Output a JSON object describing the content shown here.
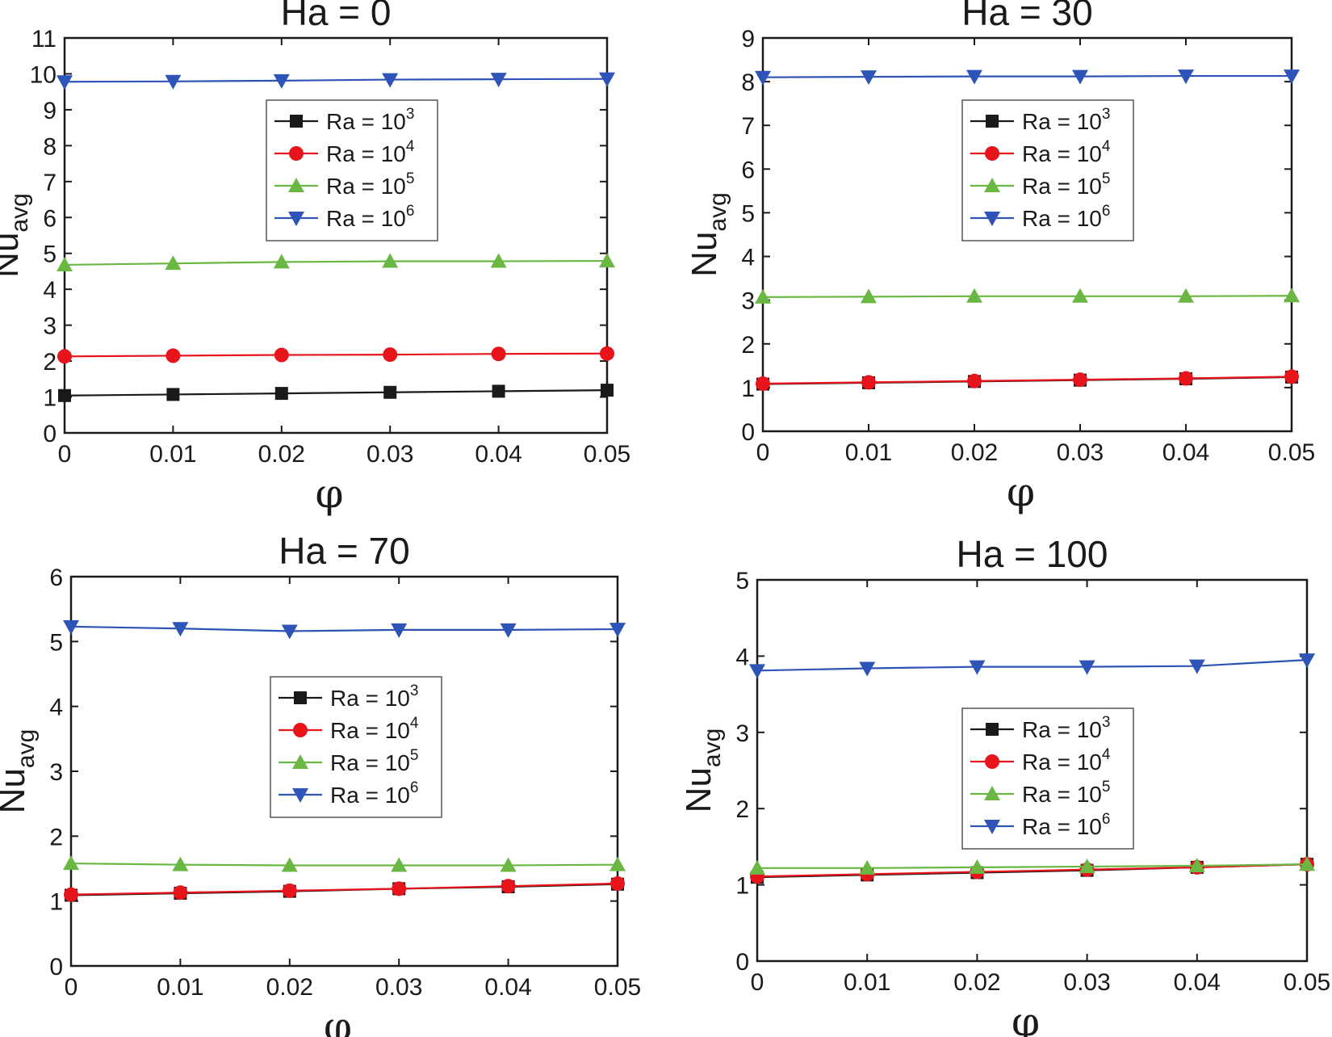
{
  "colors": {
    "Ra = 10^3": "#1a1a1a",
    "Ra = 10^4": "#e8141b",
    "Ra = 10^5": "#6ab843",
    "Ra = 10^6": "#2f54b8"
  },
  "chart_data": [
    {
      "type": "line",
      "title": "Ha = 0",
      "xlabel": "φ",
      "ylabel": "Nu",
      "ylabel_sub": "avg",
      "x": [
        0,
        0.01,
        0.02,
        0.03,
        0.04,
        0.05
      ],
      "x_tick_labels": [
        "0",
        "0.01",
        "0.02",
        "0.03",
        "0.04",
        "0.05"
      ],
      "xlim": [
        0,
        0.05
      ],
      "ylim": [
        0,
        11
      ],
      "y_ticks": [
        0,
        1,
        2,
        3,
        4,
        5,
        6,
        7,
        8,
        9,
        10,
        11
      ],
      "legend_position": "upper-center",
      "series": [
        {
          "name": "Ra = 10",
          "exp": "3",
          "marker": "square",
          "values": [
            1.04,
            1.07,
            1.1,
            1.13,
            1.16,
            1.19
          ]
        },
        {
          "name": "Ra = 10",
          "exp": "4",
          "marker": "circle",
          "values": [
            2.13,
            2.15,
            2.17,
            2.18,
            2.2,
            2.21
          ]
        },
        {
          "name": "Ra = 10",
          "exp": "5",
          "marker": "triangle-up",
          "values": [
            4.68,
            4.72,
            4.76,
            4.78,
            4.78,
            4.79
          ]
        },
        {
          "name": "Ra = 10",
          "exp": "6",
          "marker": "triangle-down",
          "values": [
            9.78,
            9.79,
            9.81,
            9.84,
            9.85,
            9.86
          ]
        }
      ]
    },
    {
      "type": "line",
      "title": "Ha = 30",
      "xlabel": "φ",
      "ylabel": "Nu",
      "ylabel_sub": "avg",
      "x": [
        0,
        0.01,
        0.02,
        0.03,
        0.04,
        0.05
      ],
      "x_tick_labels": [
        "0",
        "0.01",
        "0.02",
        "0.03",
        "0.04",
        "0.05"
      ],
      "xlim": [
        0,
        0.05
      ],
      "ylim": [
        0,
        9
      ],
      "y_ticks": [
        0,
        1,
        2,
        3,
        4,
        5,
        6,
        7,
        8,
        9
      ],
      "legend_position": "upper-center",
      "series": [
        {
          "name": "Ra = 10",
          "exp": "3",
          "marker": "square",
          "values": [
            1.08,
            1.11,
            1.14,
            1.17,
            1.2,
            1.24
          ]
        },
        {
          "name": "Ra = 10",
          "exp": "4",
          "marker": "circle",
          "values": [
            1.09,
            1.12,
            1.15,
            1.18,
            1.21,
            1.25
          ]
        },
        {
          "name": "Ra = 10",
          "exp": "5",
          "marker": "triangle-up",
          "values": [
            3.07,
            3.08,
            3.09,
            3.09,
            3.09,
            3.1
          ]
        },
        {
          "name": "Ra = 10",
          "exp": "6",
          "marker": "triangle-down",
          "values": [
            8.1,
            8.11,
            8.12,
            8.12,
            8.13,
            8.13
          ]
        }
      ]
    },
    {
      "type": "line",
      "title": "Ha = 70",
      "xlabel": "φ",
      "ylabel": "Nu",
      "ylabel_sub": "avg",
      "x": [
        0,
        0.01,
        0.02,
        0.03,
        0.04,
        0.05
      ],
      "x_tick_labels": [
        "0",
        "0.01",
        "0.02",
        "0.03",
        "0.04",
        "0.05"
      ],
      "xlim": [
        0,
        0.05
      ],
      "ylim": [
        0,
        6
      ],
      "y_ticks": [
        0,
        1,
        2,
        3,
        4,
        5,
        6
      ],
      "legend_position": "center",
      "series": [
        {
          "name": "Ra = 10",
          "exp": "3",
          "marker": "square",
          "values": [
            1.09,
            1.12,
            1.15,
            1.19,
            1.22,
            1.26
          ]
        },
        {
          "name": "Ra = 10",
          "exp": "4",
          "marker": "circle",
          "values": [
            1.1,
            1.13,
            1.16,
            1.19,
            1.23,
            1.27
          ]
        },
        {
          "name": "Ra = 10",
          "exp": "5",
          "marker": "triangle-up",
          "values": [
            1.58,
            1.56,
            1.55,
            1.55,
            1.55,
            1.56
          ]
        },
        {
          "name": "Ra = 10",
          "exp": "6",
          "marker": "triangle-down",
          "values": [
            5.23,
            5.2,
            5.16,
            5.18,
            5.18,
            5.19
          ]
        }
      ]
    },
    {
      "type": "line",
      "title": "Ha = 100",
      "xlabel": "φ",
      "ylabel": "Nu",
      "ylabel_sub": "avg",
      "x": [
        0,
        0.01,
        0.02,
        0.03,
        0.04,
        0.05
      ],
      "x_tick_labels": [
        "0",
        "0.01",
        "0.02",
        "0.03",
        "0.04",
        "0.05"
      ],
      "xlim": [
        0,
        0.05
      ],
      "ylim": [
        0,
        5
      ],
      "y_ticks": [
        0,
        1,
        2,
        3,
        4,
        5
      ],
      "legend_position": "center-right",
      "series": [
        {
          "name": "Ra = 10",
          "exp": "3",
          "marker": "square",
          "values": [
            1.1,
            1.13,
            1.16,
            1.19,
            1.23,
            1.27
          ]
        },
        {
          "name": "Ra = 10",
          "exp": "4",
          "marker": "circle",
          "values": [
            1.11,
            1.14,
            1.17,
            1.2,
            1.23,
            1.27
          ]
        },
        {
          "name": "Ra = 10",
          "exp": "5",
          "marker": "triangle-up",
          "values": [
            1.22,
            1.22,
            1.23,
            1.24,
            1.25,
            1.27
          ]
        },
        {
          "name": "Ra = 10",
          "exp": "6",
          "marker": "triangle-down",
          "values": [
            3.81,
            3.84,
            3.86,
            3.86,
            3.87,
            3.95
          ]
        }
      ]
    }
  ]
}
